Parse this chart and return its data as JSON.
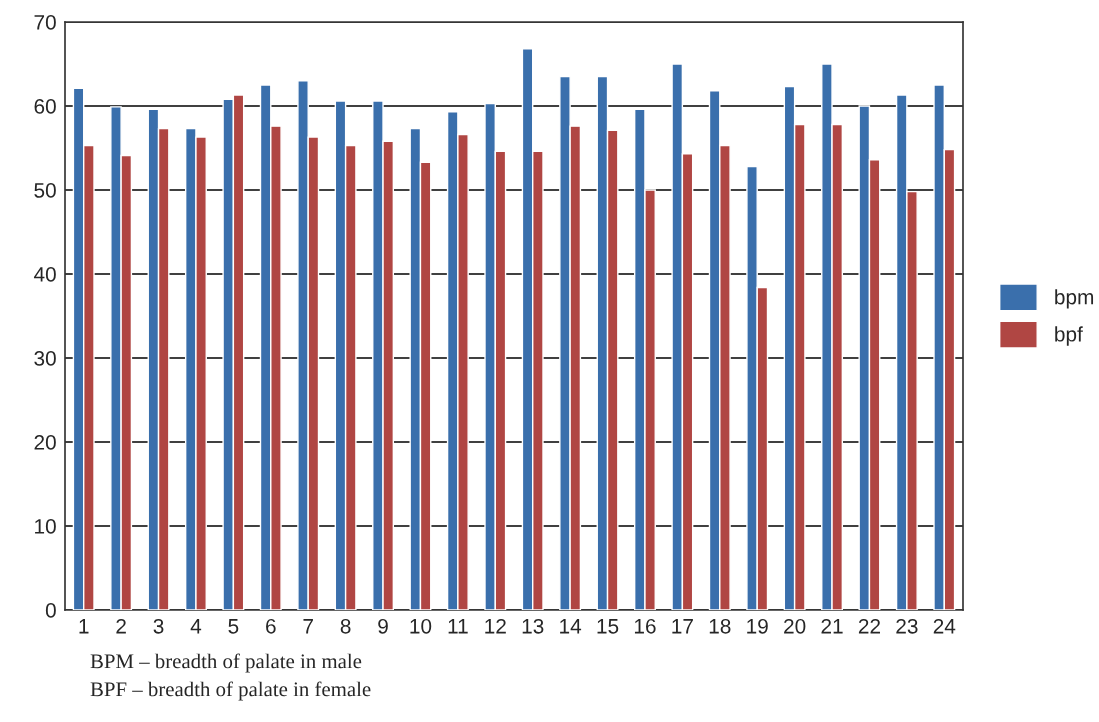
{
  "chart_data": {
    "type": "bar",
    "categories": [
      "1",
      "2",
      "3",
      "4",
      "5",
      "6",
      "7",
      "8",
      "9",
      "10",
      "11",
      "12",
      "13",
      "14",
      "15",
      "16",
      "17",
      "18",
      "19",
      "20",
      "21",
      "22",
      "23",
      "24"
    ],
    "series": [
      {
        "name": "bpm",
        "color": "#3a6fac",
        "values": [
          62.1,
          59.9,
          59.6,
          57.3,
          60.8,
          62.5,
          63.0,
          60.6,
          60.6,
          57.3,
          59.3,
          60.3,
          66.8,
          63.5,
          63.5,
          59.6,
          65.0,
          61.8,
          52.8,
          62.3,
          65.0,
          60.0,
          61.3,
          62.5
        ]
      },
      {
        "name": "bpf",
        "color": "#b04643",
        "values": [
          55.3,
          54.1,
          57.3,
          56.3,
          61.3,
          57.6,
          56.3,
          55.3,
          55.8,
          53.3,
          56.6,
          54.6,
          54.6,
          57.6,
          57.1,
          50.0,
          54.3,
          55.3,
          38.4,
          57.8,
          57.8,
          53.6,
          49.8,
          54.8
        ]
      }
    ],
    "ylim": [
      0,
      70
    ],
    "yticks": [
      0,
      10,
      20,
      30,
      40,
      50,
      60,
      70
    ],
    "grid": "y",
    "legend": "right",
    "annotations": [
      "BPM – breadth of palate in male",
      "BPF – breadth of palate in female"
    ]
  }
}
